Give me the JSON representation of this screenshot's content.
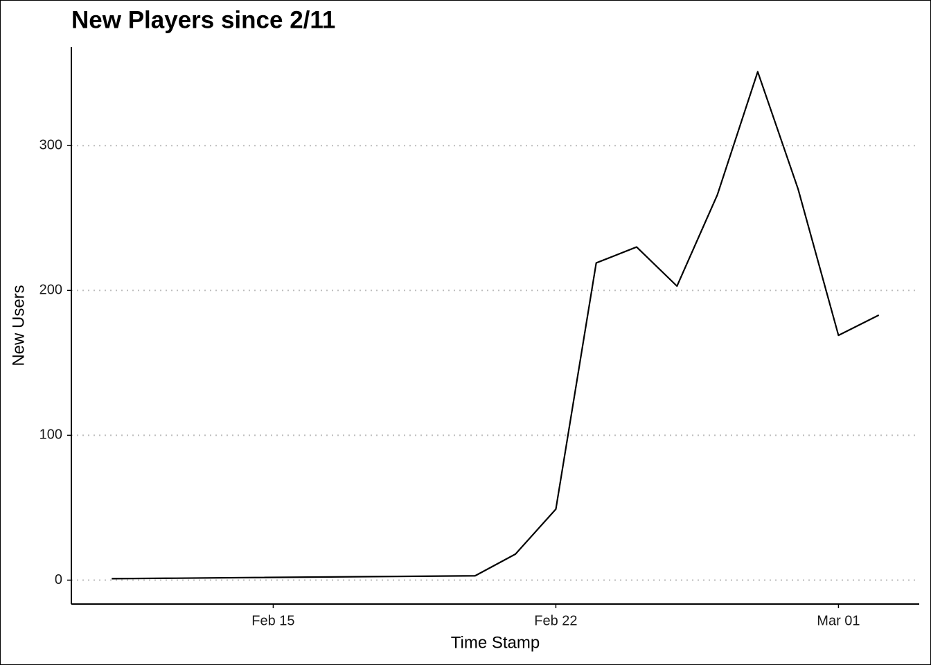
{
  "chart_data": {
    "type": "line",
    "title": "New Players since 2/11",
    "x_label": "Time Stamp",
    "y_label": "New Users",
    "x": [
      "02-11",
      "02-20",
      "02-21",
      "02-22",
      "02-23",
      "02-24",
      "02-25",
      "02-26",
      "02-27",
      "02-28",
      "03-01",
      "03-02"
    ],
    "values": [
      1,
      3,
      18,
      49,
      219,
      230,
      203,
      266,
      351,
      270,
      169,
      183
    ],
    "color": "#000000",
    "xlim": [
      "02-10",
      "03-03"
    ],
    "xticks": [
      {
        "value": "02-15",
        "label": "Feb 15"
      },
      {
        "value": "02-22",
        "label": "Feb 22"
      },
      {
        "value": "03-01",
        "label": "Mar 01"
      }
    ],
    "ylim": [
      -16.5,
      368
    ],
    "yticks": [
      0,
      100,
      200,
      300
    ],
    "grid": true
  }
}
